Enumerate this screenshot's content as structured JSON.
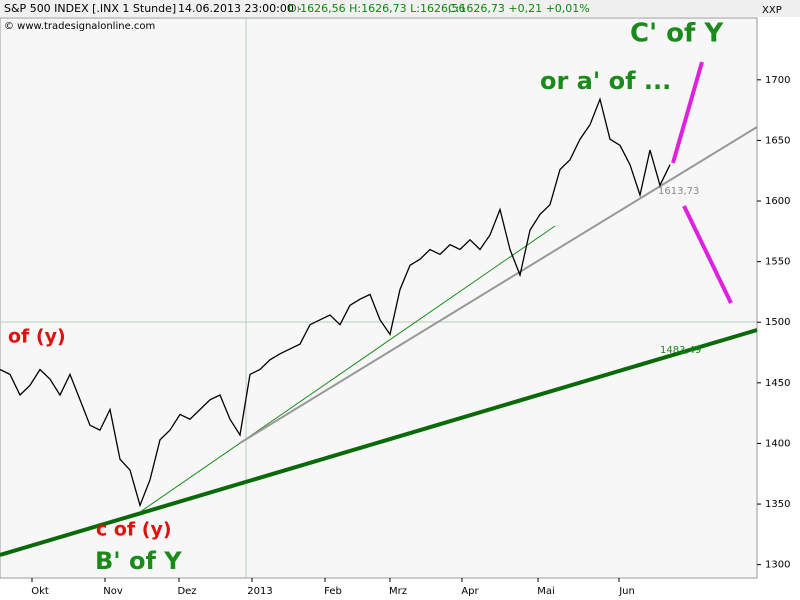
{
  "chart_data": {
    "type": "line",
    "title": "S&P 500 INDEX [.INX  1 Stunde]",
    "subtitle": "14.06.2013 23:00:00 -",
    "ohlc": "O:1626,56 H:1626,73 L:1626,56",
    "close": "C:1626,73 +0,21 +0,01%",
    "source": "© www.tradesignalonline.com",
    "axis_label": "XXP",
    "annotations": [
      "C' of Y",
      "or a' of ...",
      "of (y)",
      "c of (y)",
      "B' of Y",
      "1613,73",
      "1483,49"
    ],
    "series": [
      {
        "name": "S&P 500",
        "color": "#000000",
        "values": [
          1461,
          1457,
          1440,
          1448,
          1461,
          1453,
          1440,
          1457,
          1436,
          1415,
          1411,
          1428,
          1387,
          1378,
          1349,
          1370,
          1403,
          1411,
          1424,
          1420,
          1428,
          1436,
          1440,
          1420,
          1407,
          1457,
          1461,
          1469,
          1474,
          1478,
          1482,
          1498,
          1502,
          1506,
          1498,
          1514,
          1519,
          1523,
          1502,
          1490,
          1527,
          1547,
          1552,
          1560,
          1556,
          1564,
          1560,
          1568,
          1560,
          1572,
          1593,
          1560,
          1539,
          1576,
          1589,
          1597,
          1626,
          1634,
          1651,
          1663,
          1684,
          1651,
          1646,
          1630,
          1605,
          1642,
          1613,
          1630
        ]
      }
    ],
    "xlim": [
      0,
      75.7
    ],
    "xticks": [
      {
        "value": 4,
        "label": "Okt"
      },
      {
        "value": 11.3,
        "label": "Nov"
      },
      {
        "value": 18.7,
        "label": "Dez"
      },
      {
        "value": 26,
        "label": "2013"
      },
      {
        "value": 33.3,
        "label": "Feb"
      },
      {
        "value": 39.8,
        "label": "Mrz"
      },
      {
        "value": 47,
        "label": "Apr"
      },
      {
        "value": 54.6,
        "label": "Mai"
      },
      {
        "value": 62.7,
        "label": "Jun"
      }
    ],
    "ylim": [
      1289,
      1751
    ],
    "yticks": [
      1300,
      1350,
      1400,
      1450,
      1500,
      1550,
      1600,
      1650,
      1700
    ]
  }
}
